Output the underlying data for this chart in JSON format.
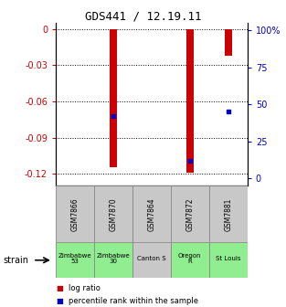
{
  "title": "GDS441 / 12.19.11",
  "samples": [
    "GSM7866",
    "GSM7870",
    "GSM7864",
    "GSM7872",
    "GSM7881"
  ],
  "strains": [
    "Zimbabwe\n53",
    "Zimbabwe\n30",
    "Canton S",
    "Oregon\nR",
    "St Louis"
  ],
  "strain_colors": [
    "#90ee90",
    "#90ee90",
    "#c8c8c8",
    "#90ee90",
    "#90ee90"
  ],
  "gsm_bg_color": "#c8c8c8",
  "log_ratios": [
    0.0,
    -0.115,
    0.0,
    -0.119,
    -0.022
  ],
  "percentile_ranks": [
    null,
    42,
    null,
    12,
    45
  ],
  "ylim_left": [
    -0.13,
    0.005
  ],
  "ylim_right": [
    -5,
    105
  ],
  "yticks_left": [
    0,
    -0.03,
    -0.06,
    -0.09,
    -0.12
  ],
  "ytick_labels_left": [
    "0",
    "-0.03",
    "-0.06",
    "-0.09",
    "-0.12"
  ],
  "yticks_right": [
    0,
    25,
    50,
    75,
    100
  ],
  "ytick_labels_right": [
    "0",
    "25",
    "50",
    "75",
    "100%"
  ],
  "left_color": "#cc0000",
  "right_color": "#0000cc",
  "bar_color": "#cc0000",
  "dot_color": "#0000cc",
  "bar_width": 0.18,
  "legend_log_ratio": "log ratio",
  "legend_percentile": "percentile rank within the sample",
  "strain_label": "strain",
  "background_color": "#ffffff"
}
